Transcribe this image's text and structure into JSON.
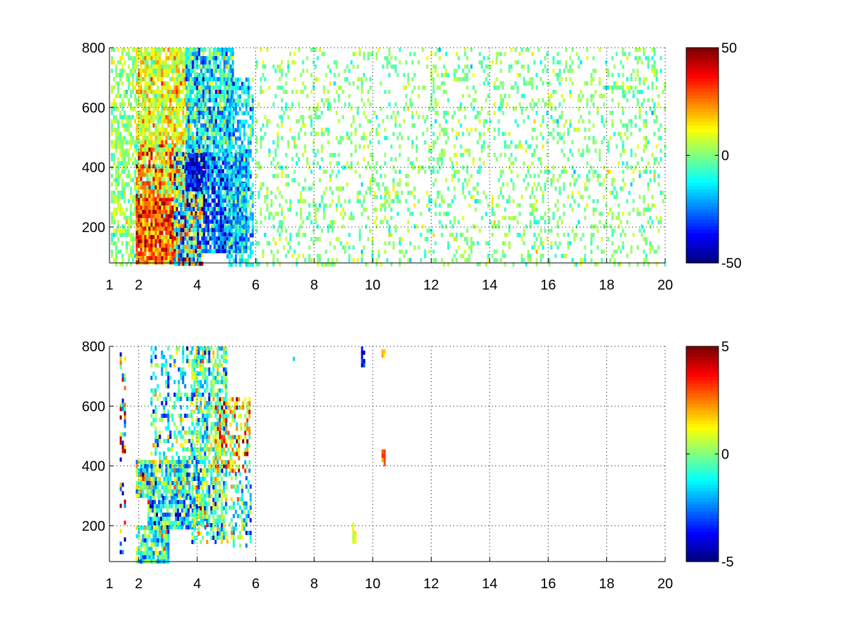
{
  "chart_data": [
    {
      "type": "heatmap",
      "title": "",
      "xlabel": "",
      "ylabel": "",
      "xlim": [
        1,
        20
      ],
      "ylim": [
        80,
        800
      ],
      "xticks": [
        1,
        2,
        4,
        6,
        8,
        10,
        12,
        14,
        16,
        18,
        20
      ],
      "yticks": [
        200,
        400,
        600,
        800
      ],
      "grid": true,
      "colormap": "jet",
      "colorbar": {
        "limits": [
          -50,
          50
        ],
        "ticks": [
          -50,
          0,
          50
        ]
      },
      "seed": 7,
      "regions": [
        {
          "x": [
            1.05,
            1.9
          ],
          "y": [
            80,
            800
          ],
          "mean": 2,
          "sd": 6,
          "density": 0.55
        },
        {
          "x": [
            1.9,
            3.3
          ],
          "y": [
            80,
            300
          ],
          "mean": 30,
          "sd": 12,
          "density": 0.97
        },
        {
          "x": [
            1.9,
            3.5
          ],
          "y": [
            300,
            480
          ],
          "mean": 18,
          "sd": 14,
          "density": 0.92
        },
        {
          "x": [
            1.9,
            3.7
          ],
          "y": [
            480,
            800
          ],
          "mean": 10,
          "sd": 9,
          "density": 0.85
        },
        {
          "x": [
            3.2,
            4.2
          ],
          "y": [
            80,
            450
          ],
          "mean": -5,
          "sd": 26,
          "density": 0.95
        },
        {
          "x": [
            3.6,
            4.3
          ],
          "y": [
            330,
            460
          ],
          "mean": -38,
          "sd": 10,
          "density": 0.9
        },
        {
          "x": [
            3.6,
            5.2
          ],
          "y": [
            450,
            800
          ],
          "mean": -12,
          "sd": 14,
          "density": 0.88
        },
        {
          "x": [
            4.2,
            5.7
          ],
          "y": [
            120,
            450
          ],
          "mean": -28,
          "sd": 14,
          "density": 0.9
        },
        {
          "x": [
            5.0,
            5.9
          ],
          "y": [
            80,
            700
          ],
          "mean": -15,
          "sd": 10,
          "density": 0.65
        },
        {
          "x": [
            6.0,
            20.0
          ],
          "y": [
            80,
            800
          ],
          "mean": 0,
          "sd": 6,
          "density": 0.2
        }
      ]
    },
    {
      "type": "heatmap",
      "title": "",
      "xlabel": "",
      "ylabel": "",
      "xlim": [
        1,
        20
      ],
      "ylim": [
        80,
        800
      ],
      "xticks": [
        1,
        2,
        4,
        6,
        8,
        10,
        12,
        14,
        16,
        18,
        20
      ],
      "yticks": [
        200,
        400,
        600,
        800
      ],
      "grid": true,
      "colormap": "jet",
      "colorbar": {
        "limits": [
          -5,
          5
        ],
        "ticks": [
          -5,
          0,
          5
        ]
      },
      "seed": 11,
      "regions": [
        {
          "x": [
            1.35,
            1.5
          ],
          "y": [
            80,
            780
          ],
          "mean": 0,
          "sd": 4,
          "density": 0.25
        },
        {
          "x": [
            1.9,
            3.7
          ],
          "y": [
            300,
            420
          ],
          "mean": -0.5,
          "sd": 1.8,
          "density": 0.9
        },
        {
          "x": [
            1.9,
            3.0
          ],
          "y": [
            80,
            200
          ],
          "mean": -0.8,
          "sd": 1.3,
          "density": 0.9
        },
        {
          "x": [
            2.3,
            4.3
          ],
          "y": [
            200,
            300
          ],
          "mean": -1.5,
          "sd": 1.8,
          "density": 0.85
        },
        {
          "x": [
            2.4,
            3.8
          ],
          "y": [
            420,
            800
          ],
          "mean": -1,
          "sd": 1.4,
          "density": 0.4
        },
        {
          "x": [
            3.8,
            5.0
          ],
          "y": [
            140,
            800
          ],
          "mean": -0.5,
          "sd": 1.6,
          "density": 0.7
        },
        {
          "x": [
            4.6,
            5.8
          ],
          "y": [
            380,
            630
          ],
          "mean": 1.5,
          "sd": 1.8,
          "density": 0.55
        },
        {
          "x": [
            5.0,
            5.8
          ],
          "y": [
            130,
            380
          ],
          "mean": -1,
          "sd": 1.5,
          "density": 0.4
        },
        {
          "x": [
            9.3,
            9.4
          ],
          "y": [
            130,
            210
          ],
          "mean": 1,
          "sd": 0.5,
          "density": 0.8
        },
        {
          "x": [
            9.6,
            9.7
          ],
          "y": [
            740,
            800
          ],
          "mean": -4,
          "sd": 0.5,
          "density": 0.9
        },
        {
          "x": [
            10.3,
            10.4
          ],
          "y": [
            410,
            455
          ],
          "mean": 3,
          "sd": 0.5,
          "density": 0.9
        },
        {
          "x": [
            10.3,
            10.4
          ],
          "y": [
            770,
            790
          ],
          "mean": 2,
          "sd": 0.5,
          "density": 0.9
        },
        {
          "x": [
            7.2,
            7.3
          ],
          "y": [
            755,
            765
          ],
          "mean": -1,
          "sd": 0.5,
          "density": 0.9
        }
      ]
    }
  ]
}
